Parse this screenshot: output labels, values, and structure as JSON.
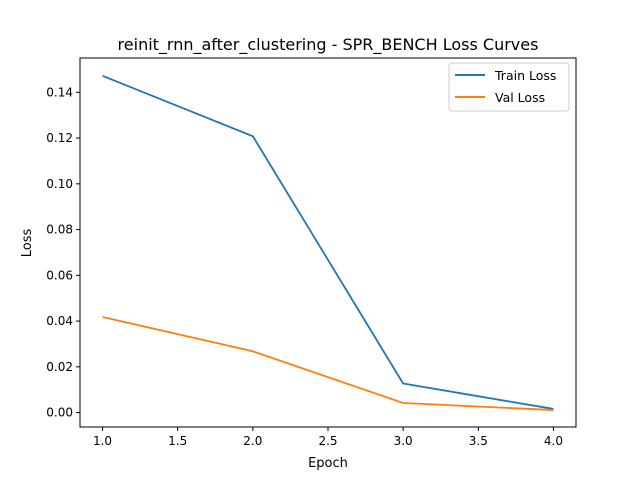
{
  "chart_data": {
    "type": "line",
    "title": "reinit_rnn_after_clustering - SPR_BENCH Loss Curves",
    "xlabel": "Epoch",
    "ylabel": "Loss",
    "x": [
      1.0,
      2.0,
      3.0,
      4.0
    ],
    "series": [
      {
        "name": "Train Loss",
        "color": "#1f77b4",
        "values": [
          0.1472,
          0.1208,
          0.0127,
          0.0016
        ]
      },
      {
        "name": "Val Loss",
        "color": "#ff7f0e",
        "values": [
          0.0418,
          0.0268,
          0.0042,
          0.0011
        ]
      }
    ],
    "xlim": [
      0.85,
      4.15
    ],
    "ylim": [
      -0.0063,
      0.155
    ],
    "xticks": [
      1.0,
      1.5,
      2.0,
      2.5,
      3.0,
      3.5,
      4.0
    ],
    "xtick_labels": [
      "1.0",
      "1.5",
      "2.0",
      "2.5",
      "3.0",
      "3.5",
      "4.0"
    ],
    "yticks": [
      0.0,
      0.02,
      0.04,
      0.06,
      0.08,
      0.1,
      0.12,
      0.14
    ],
    "ytick_labels": [
      "0.00",
      "0.02",
      "0.04",
      "0.06",
      "0.08",
      "0.10",
      "0.12",
      "0.14"
    ],
    "grid": false,
    "legend_position": "top-right"
  }
}
